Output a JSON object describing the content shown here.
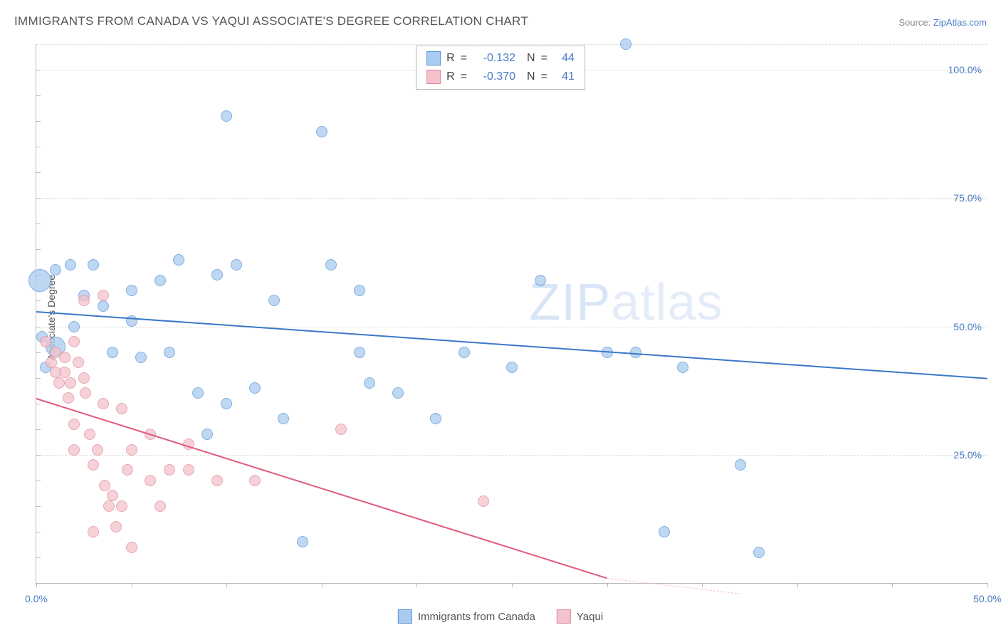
{
  "title": "IMMIGRANTS FROM CANADA VS YAQUI ASSOCIATE'S DEGREE CORRELATION CHART",
  "source_prefix": "Source: ",
  "source_link": "ZipAtlas.com",
  "watermark_bold": "ZIP",
  "watermark_thin": "atlas",
  "chart": {
    "type": "scatter",
    "background_color": "#ffffff",
    "grid_color": "#dddddd",
    "axis_color": "#bbbbbb",
    "tick_label_color": "#4a7bc4",
    "tick_fontsize": 14,
    "xlim": [
      0,
      50
    ],
    "ylim": [
      0,
      105
    ],
    "x_ticks": [
      0,
      5,
      10,
      15,
      20,
      25,
      30,
      35,
      40,
      45,
      50
    ],
    "x_tick_labels": {
      "0": "0.0%",
      "50": "50.0%"
    },
    "y_gridlines": [
      25,
      50,
      75,
      100,
      105
    ],
    "y_tick_labels": {
      "25": "25.0%",
      "50": "50.0%",
      "75": "75.0%",
      "100": "100.0%"
    },
    "y_axis_title": "Associate's Degree",
    "marker_radius": 8,
    "marker_border_width": 1.2,
    "marker_fill_opacity": 0.35,
    "trend_line_width": 2
  },
  "series": [
    {
      "name": "Immigrants from Canada",
      "fill_color": "#a9cbef",
      "border_color": "#5b94d6",
      "line_color": "#3b78c9",
      "R": "-0.132",
      "N": "44",
      "trend": {
        "x1": 0,
        "y1": 53,
        "x2": 50,
        "y2": 40
      },
      "points": [
        {
          "x": 1.0,
          "y": 61
        },
        {
          "x": 0.2,
          "y": 59,
          "r": 16
        },
        {
          "x": 1.8,
          "y": 62
        },
        {
          "x": 2.5,
          "y": 56
        },
        {
          "x": 3.5,
          "y": 54
        },
        {
          "x": 2.0,
          "y": 50
        },
        {
          "x": 5.0,
          "y": 51
        },
        {
          "x": 5.0,
          "y": 57
        },
        {
          "x": 4.0,
          "y": 45
        },
        {
          "x": 5.5,
          "y": 44
        },
        {
          "x": 6.5,
          "y": 59
        },
        {
          "x": 7.5,
          "y": 63
        },
        {
          "x": 7.0,
          "y": 45
        },
        {
          "x": 8.5,
          "y": 37
        },
        {
          "x": 9.0,
          "y": 29
        },
        {
          "x": 9.5,
          "y": 60
        },
        {
          "x": 10.5,
          "y": 62
        },
        {
          "x": 10.0,
          "y": 35
        },
        {
          "x": 10.0,
          "y": 91
        },
        {
          "x": 11.5,
          "y": 38
        },
        {
          "x": 12.5,
          "y": 55
        },
        {
          "x": 13.0,
          "y": 32
        },
        {
          "x": 14.0,
          "y": 8
        },
        {
          "x": 15.0,
          "y": 88
        },
        {
          "x": 15.5,
          "y": 62
        },
        {
          "x": 17.0,
          "y": 57
        },
        {
          "x": 17.5,
          "y": 39
        },
        {
          "x": 17.0,
          "y": 45
        },
        {
          "x": 19.0,
          "y": 37
        },
        {
          "x": 21.0,
          "y": 32
        },
        {
          "x": 22.5,
          "y": 45
        },
        {
          "x": 25.0,
          "y": 42
        },
        {
          "x": 26.5,
          "y": 59
        },
        {
          "x": 30.0,
          "y": 45
        },
        {
          "x": 31.0,
          "y": 105
        },
        {
          "x": 31.5,
          "y": 45
        },
        {
          "x": 33.0,
          "y": 10
        },
        {
          "x": 34.0,
          "y": 42
        },
        {
          "x": 37.0,
          "y": 23
        },
        {
          "x": 38.0,
          "y": 6
        },
        {
          "x": 1.0,
          "y": 46,
          "r": 14
        },
        {
          "x": 0.5,
          "y": 42
        },
        {
          "x": 0.3,
          "y": 48
        },
        {
          "x": 3.0,
          "y": 62
        }
      ]
    },
    {
      "name": "Yaqui",
      "fill_color": "#f4c2cc",
      "border_color": "#e28a9c",
      "line_color": "#e05a7a",
      "R": "-0.370",
      "N": "41",
      "trend": {
        "x1": 0,
        "y1": 36,
        "x2": 30,
        "y2": 1
      },
      "trend_dash": {
        "x1": 30,
        "y1": 1,
        "x2": 37,
        "y2": -7
      },
      "points": [
        {
          "x": 0.5,
          "y": 47
        },
        {
          "x": 1.0,
          "y": 45
        },
        {
          "x": 1.5,
          "y": 41
        },
        {
          "x": 1.0,
          "y": 41
        },
        {
          "x": 1.8,
          "y": 39
        },
        {
          "x": 2.0,
          "y": 47
        },
        {
          "x": 2.5,
          "y": 55
        },
        {
          "x": 2.5,
          "y": 40
        },
        {
          "x": 2.0,
          "y": 31
        },
        {
          "x": 2.8,
          "y": 29
        },
        {
          "x": 3.0,
          "y": 23
        },
        {
          "x": 2.0,
          "y": 26
        },
        {
          "x": 3.5,
          "y": 56
        },
        {
          "x": 3.5,
          "y": 35
        },
        {
          "x": 3.0,
          "y": 10
        },
        {
          "x": 3.8,
          "y": 15
        },
        {
          "x": 4.5,
          "y": 34
        },
        {
          "x": 4.5,
          "y": 15
        },
        {
          "x": 4.0,
          "y": 17
        },
        {
          "x": 4.8,
          "y": 22
        },
        {
          "x": 5.0,
          "y": 7
        },
        {
          "x": 5.0,
          "y": 26
        },
        {
          "x": 6.0,
          "y": 29
        },
        {
          "x": 6.0,
          "y": 20
        },
        {
          "x": 6.5,
          "y": 15
        },
        {
          "x": 7.0,
          "y": 22
        },
        {
          "x": 8.0,
          "y": 22
        },
        {
          "x": 8.0,
          "y": 27
        },
        {
          "x": 9.5,
          "y": 20
        },
        {
          "x": 11.5,
          "y": 20
        },
        {
          "x": 16.0,
          "y": 30
        },
        {
          "x": 23.5,
          "y": 16
        },
        {
          "x": 0.8,
          "y": 43
        },
        {
          "x": 1.2,
          "y": 39
        },
        {
          "x": 1.5,
          "y": 44
        },
        {
          "x": 2.2,
          "y": 43
        },
        {
          "x": 2.6,
          "y": 37
        },
        {
          "x": 3.2,
          "y": 26
        },
        {
          "x": 3.6,
          "y": 19
        },
        {
          "x": 4.2,
          "y": 11
        },
        {
          "x": 1.7,
          "y": 36
        }
      ]
    }
  ],
  "legend_bottom": [
    {
      "label": "Immigrants from Canada",
      "fill": "#a9cbef",
      "border": "#5b94d6"
    },
    {
      "label": "Yaqui",
      "fill": "#f4c2cc",
      "border": "#e28a9c"
    }
  ],
  "legend_top_labels": {
    "r": "R",
    "eq": "=",
    "n": "N"
  }
}
